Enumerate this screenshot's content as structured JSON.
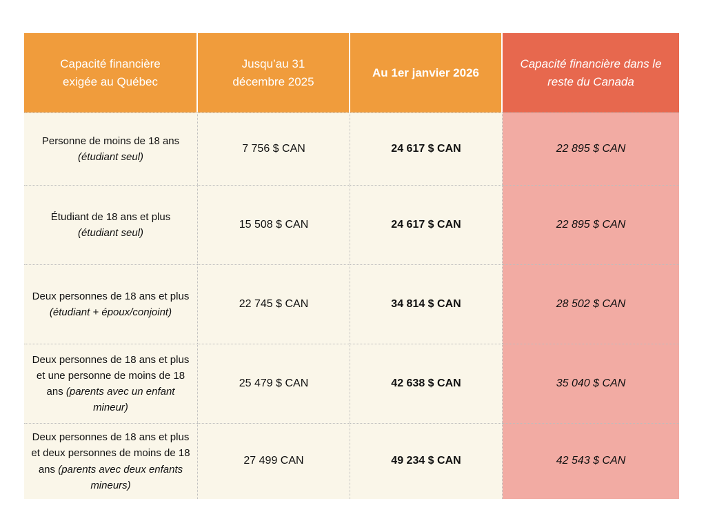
{
  "colors": {
    "header_orange": "#F09C3C",
    "header_red": "#E7684E",
    "body_cream": "#FAF6E9",
    "body_pink": "#F2ABA3",
    "header_text": "#FFFFFF",
    "body_text": "#111111",
    "dotted_divider": "#BDBDBD"
  },
  "table": {
    "headers": [
      "Capacité financière exigée au Québec",
      "Jusqu’au 31 décembre 2025",
      "Au 1er janvier 2026",
      "Capacité financière dans le reste du Canada"
    ],
    "rows": [
      {
        "cat_main": "Personne de moins de 18 ans",
        "cat_note": "(étudiant seul)",
        "until_2025": "7 756 $ CAN",
        "from_2026": "24 617 $ CAN",
        "rest_canada": "22 895 $ CAN"
      },
      {
        "cat_main": "Étudiant de 18 ans et plus",
        "cat_note": "(étudiant seul)",
        "until_2025": "15 508 $ CAN",
        "from_2026": "24 617 $ CAN",
        "rest_canada": "22 895 $ CAN"
      },
      {
        "cat_main": "Deux personnes de 18 ans et plus",
        "cat_note": "(étudiant + époux/conjoint)",
        "until_2025": "22 745 $ CAN",
        "from_2026": "34 814 $ CAN",
        "rest_canada": "28 502 $ CAN"
      },
      {
        "cat_main": "Deux personnes de 18 ans et plus et une personne de moins de 18 ans",
        "cat_note": "(parents avec un enfant mineur)",
        "until_2025": "25 479 $ CAN",
        "from_2026": "42 638 $ CAN",
        "rest_canada": "35 040 $ CAN"
      },
      {
        "cat_main": "Deux personnes de 18 ans et plus et deux personnes de moins de 18 ans",
        "cat_note": "(parents avec deux enfants mineurs)",
        "until_2025": "27 499 CAN",
        "from_2026": "49 234 $ CAN",
        "rest_canada": "42 543 $ CAN"
      }
    ]
  }
}
